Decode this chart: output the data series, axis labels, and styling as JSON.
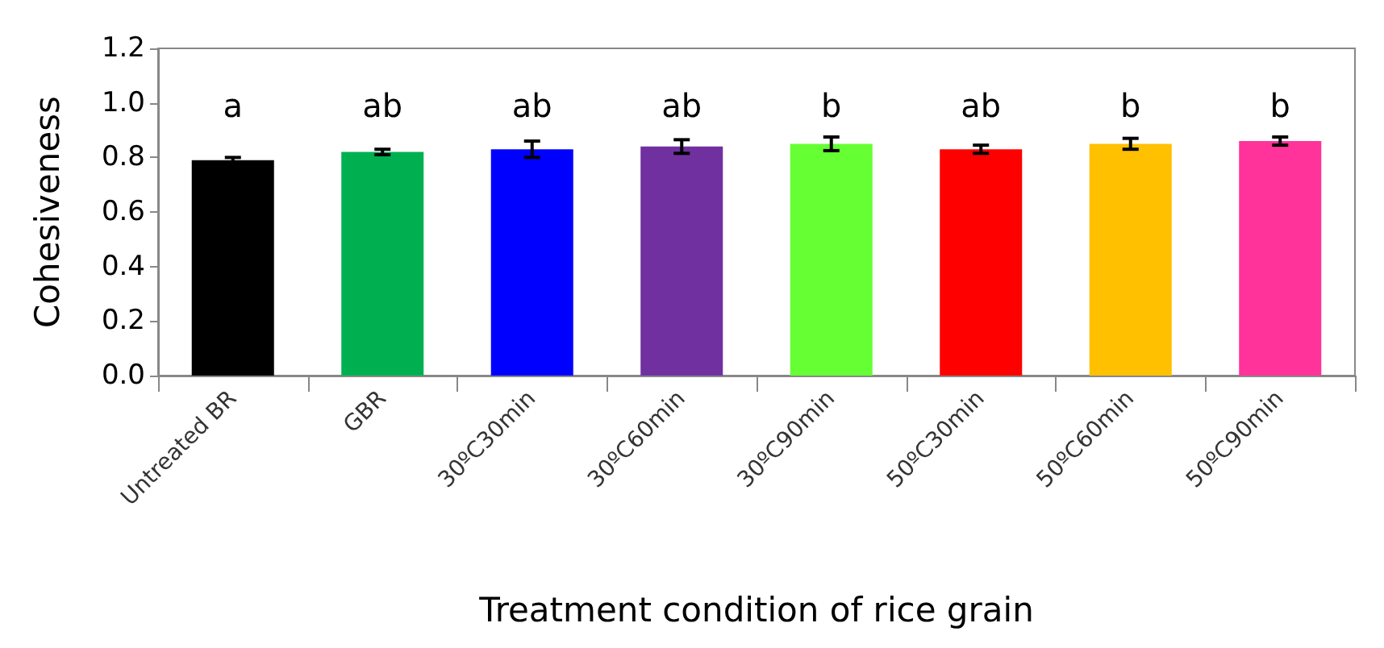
{
  "chart_data": {
    "type": "bar",
    "xlabel": "Treatment condition of rice grain",
    "ylabel": "Cohesiveness",
    "categories": [
      "Untreated BR",
      "GBR",
      "30ºC30min",
      "30ºC60min",
      "30ºC90min",
      "50ºC30min",
      "50ºC60min",
      "50ºC90min"
    ],
    "values": [
      0.79,
      0.82,
      0.83,
      0.84,
      0.85,
      0.83,
      0.85,
      0.86
    ],
    "errors": [
      0.01,
      0.01,
      0.03,
      0.025,
      0.025,
      0.015,
      0.02,
      0.015
    ],
    "colors": [
      "#000000",
      "#00b050",
      "#0000ff",
      "#7030a0",
      "#66ff33",
      "#ff0000",
      "#ffc000",
      "#ff3399"
    ],
    "ylim": [
      0,
      1.2
    ],
    "yticks": [
      {
        "value": 0,
        "label": "0.0"
      },
      {
        "value": 0.2,
        "label": "0.2"
      },
      {
        "value": 0.4,
        "label": "0.4"
      },
      {
        "value": 0.6,
        "label": "0.6"
      },
      {
        "value": 0.8,
        "label": "0.8"
      },
      {
        "value": 1,
        "label": "1.0"
      },
      {
        "value": 1.2,
        "label": "1.2"
      }
    ],
    "annotations": [
      "a",
      "ab",
      "ab",
      "ab",
      "b",
      "ab",
      "b",
      "b"
    ],
    "grid": false
  }
}
